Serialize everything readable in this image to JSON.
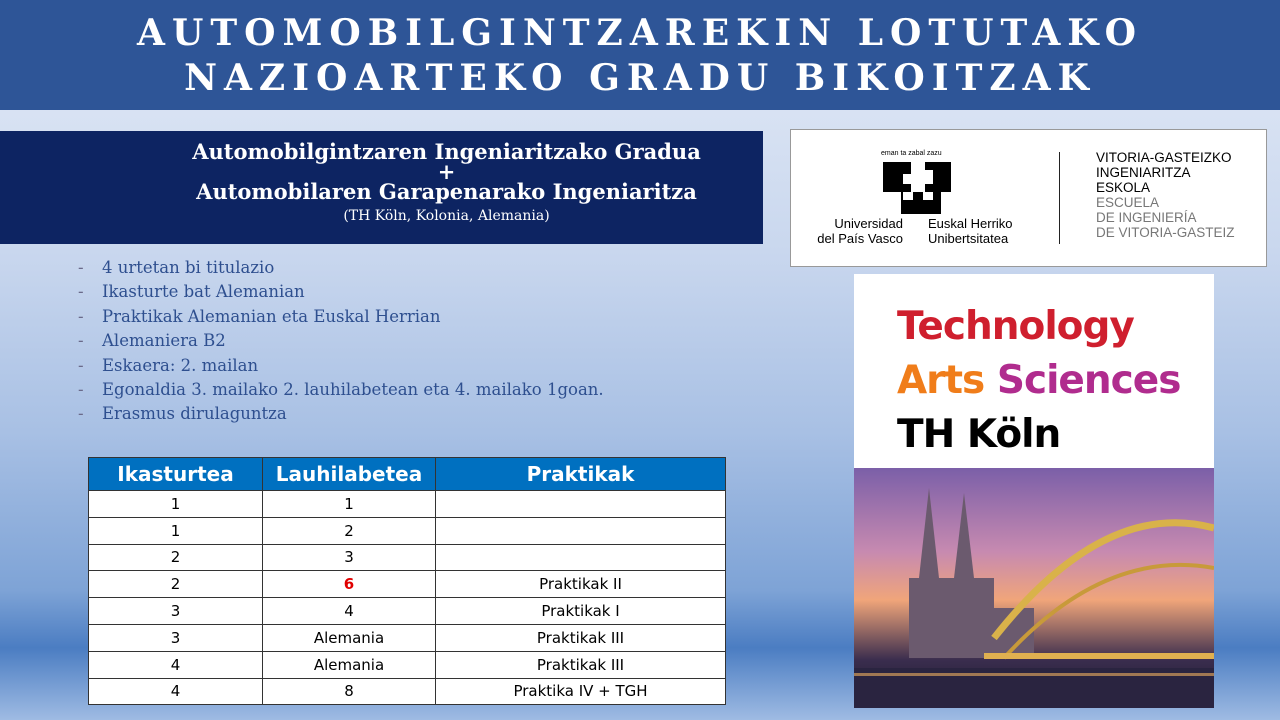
{
  "banner": {
    "line1": "AUTOMOBILGINTZAREKIN LOTUTAKO",
    "line2": "NAZIOARTEKO GRADU BIKOITZAK"
  },
  "title": {
    "line1": "Automobilgintzaren Ingeniaritzako Gradua",
    "plus": "+",
    "line2": "Automobilaren Garapenarako Ingeniaritza",
    "location": "(TH Köln, Kolonia, Alemania)"
  },
  "bullets": [
    {
      "parts": [
        {
          "t": "4 urtetan bi titulazio"
        }
      ]
    },
    {
      "parts": [
        {
          "t": "Ikasturte bat Alemanian"
        }
      ]
    },
    {
      "parts": [
        {
          "t": "Praktikak Alemanian eta Euskal Herrian"
        }
      ]
    },
    {
      "parts": [
        {
          "t": "Alemaniera B2"
        }
      ]
    },
    {
      "parts": [
        {
          "t": "Eskaera: 2. mailan"
        }
      ]
    },
    {
      "parts": [
        {
          "t": "Egonaldia "
        },
        {
          "t": "3. mailako",
          "b": true
        },
        {
          "t": " 2. lauhilabetean eta "
        },
        {
          "t": "4. mailako",
          "b": true
        },
        {
          "t": " 1goan."
        }
      ]
    },
    {
      "parts": [
        {
          "t": "Erasmus dirulaguntza"
        }
      ]
    }
  ],
  "table": {
    "headers": [
      "Ikasturtea",
      "Lauhilabetea",
      "Praktikak"
    ],
    "rows": [
      [
        "1",
        "1",
        ""
      ],
      [
        "1",
        "2",
        ""
      ],
      [
        "2",
        "3",
        ""
      ],
      [
        "2",
        "6",
        "Praktikak II"
      ],
      [
        "3",
        "4",
        "Praktikak I"
      ],
      [
        "3",
        "Alemania",
        "Praktikak III"
      ],
      [
        "4",
        "Alemania",
        "Praktikak III"
      ],
      [
        "4",
        "8",
        "Praktika IV + TGH"
      ]
    ],
    "highlight": {
      "row": 3,
      "col": 1,
      "color": "#e00000"
    }
  },
  "ehu_logo": {
    "motto": "eman ta zabal zazu",
    "es1": "Universidad",
    "es2": "del País Vasco",
    "eu1": "Euskal Herriko",
    "eu2": "Unibertsitatea",
    "school": [
      "VITORIA-GASTEIZKO",
      "INGENIARITZA",
      "ESKOLA"
    ],
    "school_es": [
      "ESCUELA",
      "DE INGENIERÍA",
      "DE VITORIA-GASTEIZ"
    ]
  },
  "thk_logo": {
    "line1": "Technology",
    "arts": "Arts",
    "sciences": "Sciences",
    "line3": "TH Köln",
    "colors": {
      "technology": "#cf1f2e",
      "arts": "#f07d1a",
      "sciences": "#b02c8e"
    }
  }
}
